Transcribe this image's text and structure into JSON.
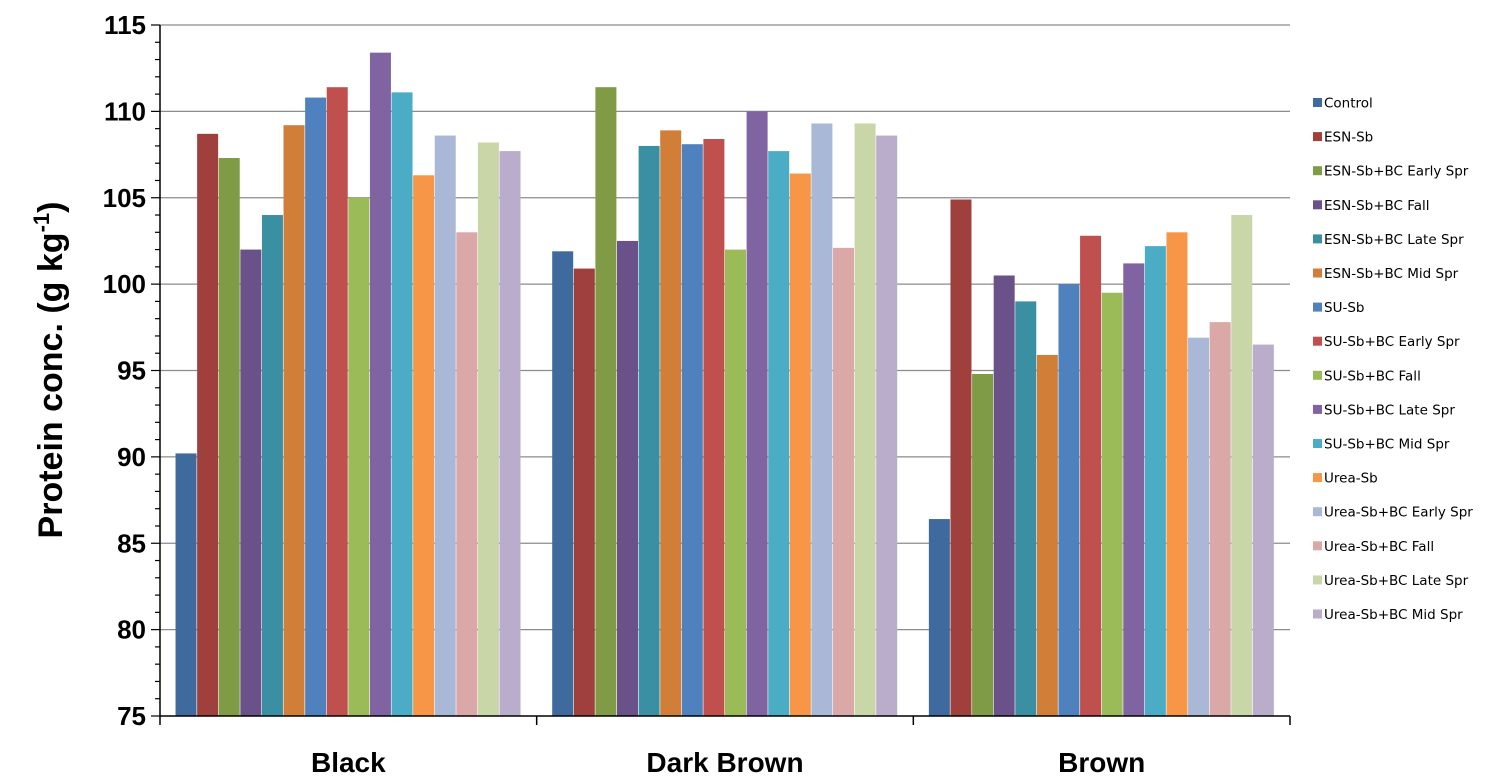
{
  "chart_data": {
    "type": "bar",
    "ylabel_main": "Protein conc. (g kg",
    "ylabel_sup": "-1",
    "ylabel_close": ")",
    "xlabel": "",
    "ylim": [
      75,
      115
    ],
    "yticks": [
      "75",
      "80",
      "85",
      "90",
      "95",
      "100",
      "105",
      "110",
      "115"
    ],
    "grid": true,
    "legend_position": "right",
    "categories": [
      "Black",
      "Dark Brown",
      "Brown"
    ],
    "series": [
      {
        "name": "Control",
        "color": "#3E6A9E",
        "values": [
          90.2,
          101.9,
          86.4
        ]
      },
      {
        "name": "ESN-Sb",
        "color": "#A0403D",
        "values": [
          108.7,
          100.9,
          104.9
        ]
      },
      {
        "name": "ESN-Sb+BC Early Spr",
        "color": "#7F9B46",
        "values": [
          107.3,
          111.4,
          94.8
        ]
      },
      {
        "name": "ESN-Sb+BC Fall",
        "color": "#6A5189",
        "values": [
          102.0,
          102.5,
          100.5
        ]
      },
      {
        "name": "ESN-Sb+BC Late Spr",
        "color": "#3A8FA3",
        "values": [
          104.0,
          108.0,
          99.0
        ]
      },
      {
        "name": "ESN-Sb+BC Mid Spr",
        "color": "#D07E38",
        "values": [
          109.2,
          108.9,
          95.9
        ]
      },
      {
        "name": "SU-Sb",
        "color": "#4E81BD",
        "values": [
          110.8,
          108.1,
          100.0
        ]
      },
      {
        "name": "SU-Sb+BC Early Spr",
        "color": "#C0504D",
        "values": [
          111.4,
          108.4,
          102.8
        ]
      },
      {
        "name": "SU-Sb+BC Fall",
        "color": "#9BBB59",
        "values": [
          105.0,
          102.0,
          99.5
        ]
      },
      {
        "name": "SU-Sb+BC Late Spr",
        "color": "#8064A2",
        "values": [
          113.4,
          110.0,
          101.2
        ]
      },
      {
        "name": "SU-Sb+BC Mid Spr",
        "color": "#4BACC6",
        "values": [
          111.1,
          107.7,
          102.2
        ]
      },
      {
        "name": "Urea-Sb",
        "color": "#F79646",
        "values": [
          106.3,
          106.4,
          103.0
        ]
      },
      {
        "name": "Urea-Sb+BC Early Spr",
        "color": "#A9B8D7",
        "values": [
          108.6,
          109.3,
          96.9
        ]
      },
      {
        "name": "Urea-Sb+BC Fall",
        "color": "#D9A8A7",
        "values": [
          103.0,
          102.1,
          97.8
        ]
      },
      {
        "name": "Urea-Sb+BC Late Spr",
        "color": "#C8D6A8",
        "values": [
          108.2,
          109.3,
          104.0
        ]
      },
      {
        "name": "Urea-Sb+BC Mid Spr",
        "color": "#B9ADCB",
        "values": [
          107.7,
          108.6,
          96.5
        ]
      }
    ]
  }
}
